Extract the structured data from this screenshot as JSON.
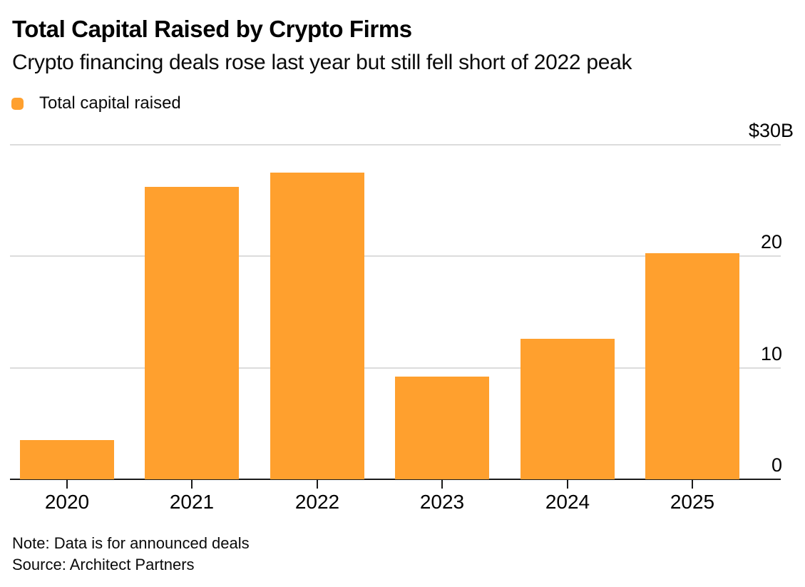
{
  "header": {
    "title": "Total Capital Raised by Crypto Firms",
    "subtitle": "Crypto financing deals rose last year but still fell short of 2022 peak"
  },
  "legend": {
    "label": "Total capital raised",
    "swatch_color": "#FFA02E"
  },
  "colors": {
    "bar": "#FFA02E",
    "gridline": "#DCDCDC",
    "axis": "#1A1A1A",
    "text": "#000000",
    "background": "#FFFFFF"
  },
  "footer": {
    "note": "Note: Data is for announced deals",
    "source": "Source: Architect Partners"
  },
  "chart_data": {
    "type": "bar",
    "title": "Total Capital Raised by Crypto Firms",
    "subtitle": "Crypto financing deals rose last year but still fell short of 2022 peak",
    "legend_entries": [
      "Total capital raised"
    ],
    "legend_position": "top-left",
    "categories": [
      "2020",
      "2021",
      "2022",
      "2023",
      "2024",
      "2025"
    ],
    "values": [
      3.5,
      26.2,
      27.5,
      9.2,
      12.6,
      20.3
    ],
    "unit": "$B",
    "xlabel": "",
    "ylabel": "Total capital raised ($B)",
    "ylim": [
      0,
      30
    ],
    "grid": "horizontal",
    "yticks": [
      {
        "value": 30,
        "label": "$30B"
      },
      {
        "value": 20,
        "label": "20"
      },
      {
        "value": 10,
        "label": "10"
      },
      {
        "value": 0,
        "label": "0"
      }
    ]
  }
}
